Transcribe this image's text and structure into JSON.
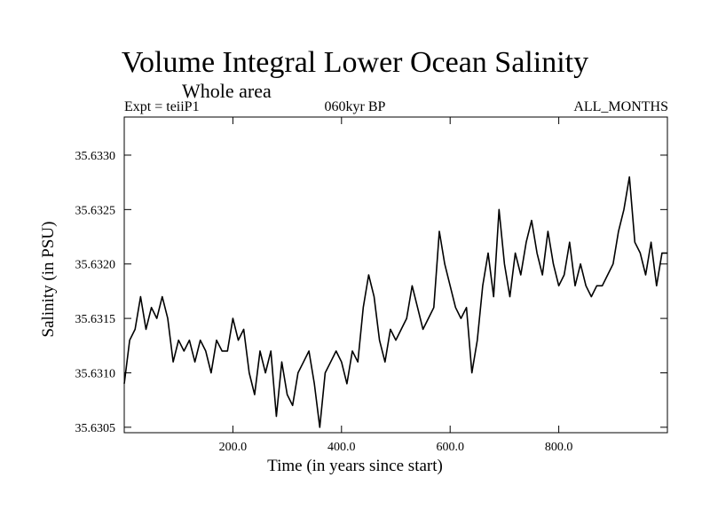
{
  "chart_data": {
    "type": "line",
    "title": "Volume Integral Lower Ocean Salinity",
    "subtitle": "Whole area",
    "header_left": "Expt = teiiP1",
    "header_center": "060kyr BP",
    "header_right": "ALL_MONTHS",
    "xlabel": "Time (in years since start)",
    "ylabel": "Salinity (in PSU)",
    "xlim": [
      0,
      1000
    ],
    "ylim": [
      35.63045,
      35.63335
    ],
    "xticks": [
      200,
      400,
      600,
      800
    ],
    "xtick_labels": [
      "200.0",
      "400.0",
      "600.0",
      "800.0"
    ],
    "yticks": [
      35.6305,
      35.631,
      35.6315,
      35.632,
      35.6325,
      35.633
    ],
    "ytick_labels": [
      "35.6305",
      "35.6310",
      "35.6315",
      "35.6320",
      "35.6325",
      "35.6330"
    ],
    "grid": false,
    "series": [
      {
        "color": "#000000",
        "x": [
          0,
          10,
          20,
          30,
          40,
          50,
          60,
          70,
          80,
          90,
          100,
          110,
          120,
          130,
          140,
          150,
          160,
          170,
          180,
          190,
          200,
          210,
          220,
          230,
          240,
          250,
          260,
          270,
          280,
          290,
          300,
          310,
          320,
          330,
          340,
          350,
          360,
          370,
          380,
          390,
          400,
          410,
          420,
          430,
          440,
          450,
          460,
          470,
          480,
          490,
          500,
          510,
          520,
          530,
          540,
          550,
          560,
          570,
          580,
          590,
          600,
          610,
          620,
          630,
          640,
          650,
          660,
          670,
          680,
          690,
          700,
          710,
          720,
          730,
          740,
          750,
          760,
          770,
          780,
          790,
          800,
          810,
          820,
          830,
          840,
          850,
          860,
          870,
          880,
          890,
          900,
          910,
          920,
          930,
          940,
          950,
          960,
          970,
          980,
          990,
          1000
        ],
        "values": [
          35.6309,
          35.6313,
          35.6314,
          35.6317,
          35.6314,
          35.6316,
          35.6315,
          35.6317,
          35.6315,
          35.6311,
          35.6313,
          35.6312,
          35.6313,
          35.6311,
          35.6313,
          35.6312,
          35.631,
          35.6313,
          35.6312,
          35.6312,
          35.6315,
          35.6313,
          35.6314,
          35.631,
          35.6308,
          35.6312,
          35.631,
          35.6312,
          35.6306,
          35.6311,
          35.6308,
          35.6307,
          35.631,
          35.6311,
          35.6312,
          35.6309,
          35.6305,
          35.631,
          35.6311,
          35.6312,
          35.6311,
          35.6309,
          35.6312,
          35.6311,
          35.6316,
          35.6319,
          35.6317,
          35.6313,
          35.6311,
          35.6314,
          35.6313,
          35.6314,
          35.6315,
          35.6318,
          35.6316,
          35.6314,
          35.6315,
          35.6316,
          35.6323,
          35.632,
          35.6318,
          35.6316,
          35.6315,
          35.6316,
          35.631,
          35.6313,
          35.6318,
          35.6321,
          35.6317,
          35.6325,
          35.632,
          35.6317,
          35.6321,
          35.6319,
          35.6322,
          35.6324,
          35.6321,
          35.6319,
          35.6323,
          35.632,
          35.6318,
          35.6319,
          35.6322,
          35.6318,
          35.632,
          35.6318,
          35.6317,
          35.6318,
          35.6318,
          35.6319,
          35.632,
          35.6323,
          35.6325,
          35.6328,
          35.6322,
          35.6321,
          35.6319,
          35.6322,
          35.6318,
          35.6321,
          35.6321
        ]
      }
    ]
  }
}
